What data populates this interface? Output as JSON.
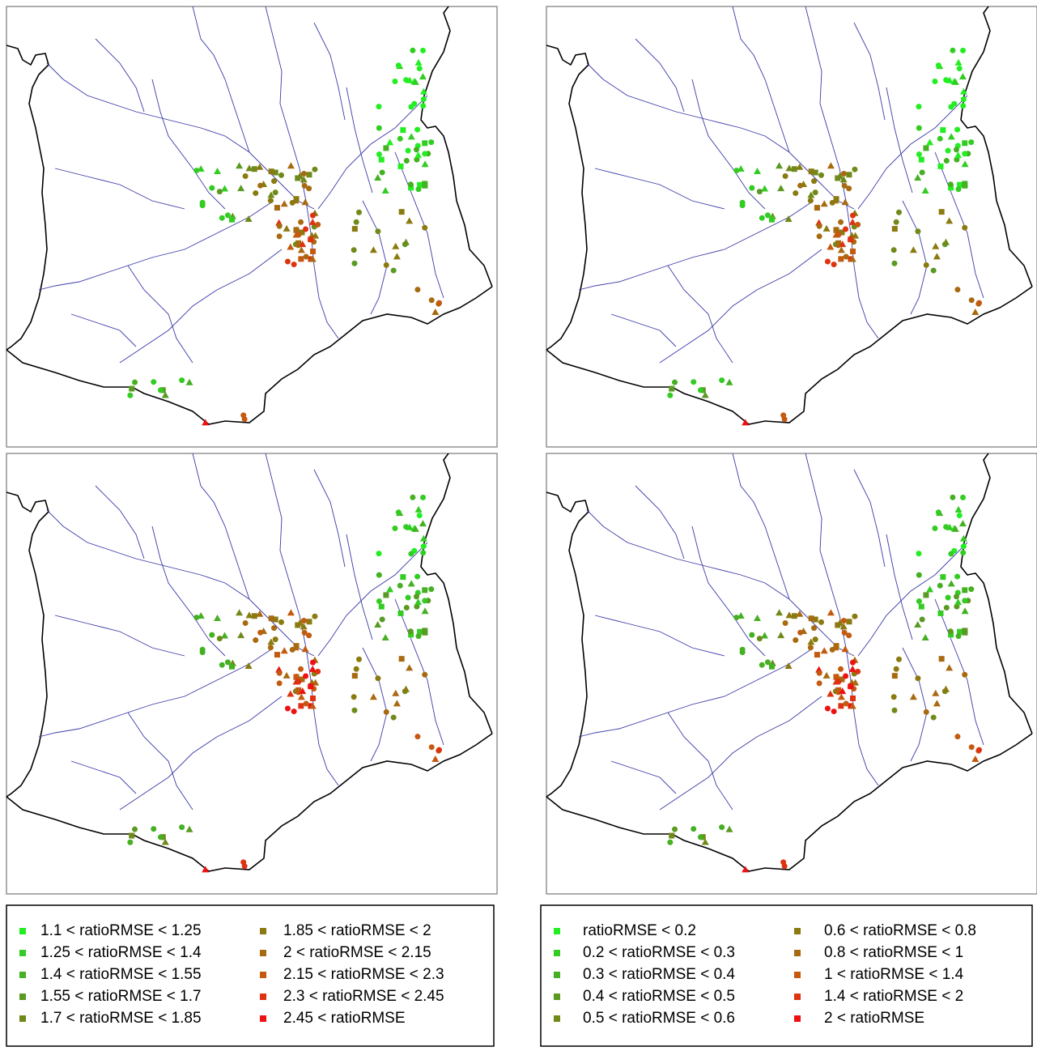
{
  "legends": [
    {
      "items": [
        {
          "label": "1.1 < ratioRMSE < 1.25",
          "color": "#22ee22"
        },
        {
          "label": "1.25 < ratioRMSE < 1.4",
          "color": "#33cc22"
        },
        {
          "label": "1.4 < ratioRMSE < 1.55",
          "color": "#44b022"
        },
        {
          "label": "1.55 < ratioRMSE < 1.7",
          "color": "#5a9a22"
        },
        {
          "label": "1.7 < ratioRMSE < 1.85",
          "color": "#708a1a"
        },
        {
          "label": "1.85 < ratioRMSE < 2",
          "color": "#8a7a10"
        },
        {
          "label": "2 < ratioRMSE < 2.15",
          "color": "#a86a10"
        },
        {
          "label": "2.15 < ratioRMSE < 2.3",
          "color": "#c45a10"
        },
        {
          "label": "2.3 < ratioRMSE < 2.45",
          "color": "#dd3311"
        },
        {
          "label": "2.45 < ratioRMSE",
          "color": "#ee1111"
        }
      ]
    },
    {
      "items": [
        {
          "label": "ratioRMSE < 0.2",
          "color": "#22ee22"
        },
        {
          "label": "0.2 < ratioRMSE < 0.3",
          "color": "#33cc22"
        },
        {
          "label": "0.3 < ratioRMSE < 0.4",
          "color": "#44b022"
        },
        {
          "label": "0.4 < ratioRMSE < 0.5",
          "color": "#5a9a22"
        },
        {
          "label": "0.5 < ratioRMSE < 0.6",
          "color": "#708a1a"
        },
        {
          "label": "0.6 < ratioRMSE < 0.8",
          "color": "#8a7a10"
        },
        {
          "label": "0.8 < ratioRMSE < 1",
          "color": "#a86a10"
        },
        {
          "label": "1 < ratioRMSE < 1.4",
          "color": "#c45a10"
        },
        {
          "label": "1.4 < ratioRMSE < 2",
          "color": "#dd3311"
        },
        {
          "label": "2 < ratioRMSE",
          "color": "#ee1111"
        }
      ]
    }
  ]
}
